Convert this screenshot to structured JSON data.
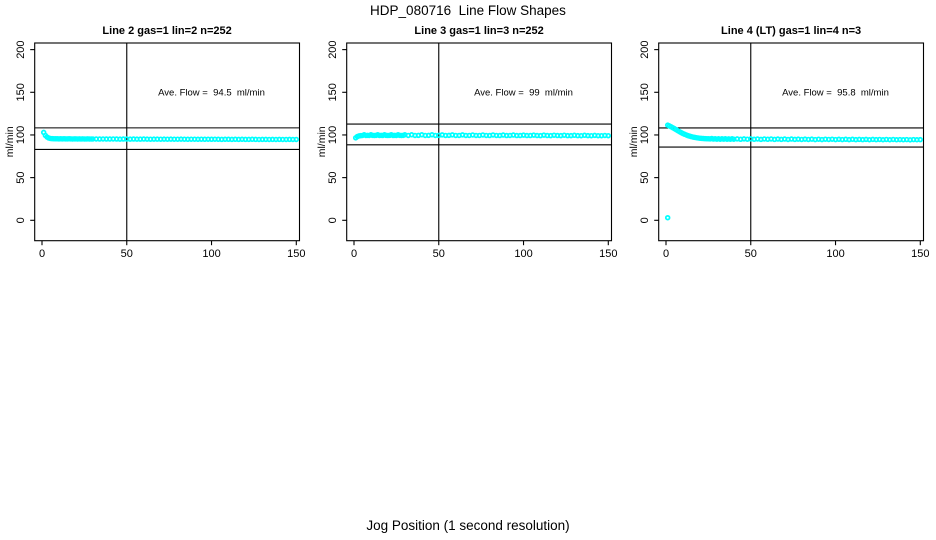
{
  "figure": {
    "background": "#ffffff",
    "accent_color": "#00FFFF"
  },
  "chart_data": {
    "type": "scatter",
    "title": "HDP_080716  Line Flow Shapes",
    "xlabel": "Jog Position (1 second resolution)",
    "ylabel": "ml/min",
    "marker": {
      "shape": "open-circle",
      "color": "#00FFFF"
    },
    "axis": {
      "xticks": [
        0,
        50,
        100,
        150
      ],
      "yticks": [
        0,
        50,
        100,
        150,
        200
      ],
      "xlim": [
        -6,
        156
      ],
      "ylim": [
        -24,
        208
      ],
      "grid": false,
      "legend": "none"
    },
    "panels": [
      {
        "title": "Line 2 gas=1 lin=2 n=252",
        "annotation": "Ave. Flow =  94.5  ml/min",
        "ave_flow_ml_min": 94.5,
        "n": 252,
        "vline": 50,
        "hlines": [
          108.3,
          83.0
        ],
        "points": [
          [
            1,
            103
          ],
          [
            2,
            99.4
          ],
          [
            3,
            97.5
          ],
          [
            4,
            96.4
          ],
          [
            5,
            95.9
          ],
          [
            6,
            95.7
          ],
          [
            7,
            95.6
          ],
          [
            8,
            95.5
          ],
          [
            9,
            95.5
          ],
          [
            10,
            95.4
          ],
          [
            11,
            95.5
          ],
          [
            12,
            95.4
          ],
          [
            13,
            95.5
          ],
          [
            14,
            95.4
          ],
          [
            15,
            95.4
          ],
          [
            16,
            95.5
          ],
          [
            17,
            95.4
          ],
          [
            18,
            95.3
          ],
          [
            19,
            95.4
          ],
          [
            20,
            95.4
          ],
          [
            21,
            95.3
          ],
          [
            22,
            95.4
          ],
          [
            23,
            95.3
          ],
          [
            24,
            95.4
          ],
          [
            25,
            95.3
          ],
          [
            26,
            95.3
          ],
          [
            27,
            95.4
          ],
          [
            28,
            95.3
          ],
          [
            29,
            95.3
          ],
          [
            30,
            95.3
          ],
          [
            32,
            95.3
          ],
          [
            34,
            95.2
          ],
          [
            36,
            95.3
          ],
          [
            38,
            95.2
          ],
          [
            40,
            95.2
          ],
          [
            42,
            95.3
          ],
          [
            44,
            95.2
          ],
          [
            46,
            95.1
          ],
          [
            48,
            95.2
          ],
          [
            50,
            95.2
          ],
          [
            52,
            95.1
          ],
          [
            54,
            95.2
          ],
          [
            56,
            95.1
          ],
          [
            58,
            95.1
          ],
          [
            60,
            95.2
          ],
          [
            62,
            95.1
          ],
          [
            64,
            95
          ],
          [
            66,
            95.1
          ],
          [
            68,
            95.1
          ],
          [
            70,
            95
          ],
          [
            72,
            95.1
          ],
          [
            74,
            95
          ],
          [
            76,
            95.1
          ],
          [
            78,
            95
          ],
          [
            80,
            95
          ],
          [
            82,
            95.1
          ],
          [
            84,
            95
          ],
          [
            86,
            94.9
          ],
          [
            88,
            95
          ],
          [
            90,
            95
          ],
          [
            92,
            94.9
          ],
          [
            94,
            95
          ],
          [
            96,
            94.9
          ],
          [
            98,
            95
          ],
          [
            100,
            94.9
          ],
          [
            102,
            95
          ],
          [
            104,
            94.9
          ],
          [
            106,
            94.8
          ],
          [
            108,
            94.9
          ],
          [
            110,
            94.9
          ],
          [
            112,
            94.8
          ],
          [
            114,
            94.9
          ],
          [
            116,
            94.8
          ],
          [
            118,
            94.9
          ],
          [
            120,
            94.8
          ],
          [
            122,
            94.8
          ],
          [
            124,
            94.9
          ],
          [
            126,
            94.8
          ],
          [
            128,
            94.7
          ],
          [
            130,
            94.8
          ],
          [
            132,
            94.8
          ],
          [
            134,
            94.7
          ],
          [
            136,
            94.8
          ],
          [
            138,
            94.7
          ],
          [
            140,
            94.8
          ],
          [
            142,
            94.7
          ],
          [
            144,
            94.7
          ],
          [
            146,
            94.8
          ],
          [
            148,
            94.7
          ],
          [
            150,
            94.7
          ]
        ]
      },
      {
        "title": "Line 3 gas=1 lin=3 n=252",
        "annotation": "Ave. Flow =  99  ml/min",
        "ave_flow_ml_min": 99,
        "n": 252,
        "vline": 50,
        "hlines": [
          112.8,
          88.5
        ],
        "points": [
          [
            1,
            96.6
          ],
          [
            2,
            98.2
          ],
          [
            3,
            98.9
          ],
          [
            4,
            99.2
          ],
          [
            5,
            99.4
          ],
          [
            6,
            100.2
          ],
          [
            7,
            99.4
          ],
          [
            8,
            99.5
          ],
          [
            9,
            99.4
          ],
          [
            10,
            100.2
          ],
          [
            11,
            99.5
          ],
          [
            12,
            99.4
          ],
          [
            13,
            99.5
          ],
          [
            14,
            100.3
          ],
          [
            15,
            99.4
          ],
          [
            16,
            99.5
          ],
          [
            17,
            99.4
          ],
          [
            18,
            100.2
          ],
          [
            19,
            99.5
          ],
          [
            20,
            99.4
          ],
          [
            21,
            99.5
          ],
          [
            22,
            100.3
          ],
          [
            23,
            99.4
          ],
          [
            24,
            99.5
          ],
          [
            25,
            99.4
          ],
          [
            26,
            100.2
          ],
          [
            27,
            99.5
          ],
          [
            28,
            99.4
          ],
          [
            29,
            99.5
          ],
          [
            30,
            100.2
          ],
          [
            32,
            99.4
          ],
          [
            34,
            100.2
          ],
          [
            36,
            99.4
          ],
          [
            38,
            99.5
          ],
          [
            40,
            100.2
          ],
          [
            42,
            99.4
          ],
          [
            44,
            99.5
          ],
          [
            46,
            100.2
          ],
          [
            48,
            99.4
          ],
          [
            50,
            99.5
          ],
          [
            52,
            100.1
          ],
          [
            54,
            99.4
          ],
          [
            56,
            99.5
          ],
          [
            58,
            100.1
          ],
          [
            60,
            99.4
          ],
          [
            62,
            99.4
          ],
          [
            64,
            100.1
          ],
          [
            66,
            99.4
          ],
          [
            68,
            99.4
          ],
          [
            70,
            100
          ],
          [
            72,
            99.4
          ],
          [
            74,
            99.4
          ],
          [
            76,
            100
          ],
          [
            78,
            99.4
          ],
          [
            80,
            99.3
          ],
          [
            82,
            100
          ],
          [
            84,
            99.4
          ],
          [
            86,
            99.3
          ],
          [
            88,
            99.9
          ],
          [
            90,
            99.3
          ],
          [
            92,
            99.4
          ],
          [
            94,
            99.9
          ],
          [
            96,
            99.3
          ],
          [
            98,
            99.3
          ],
          [
            100,
            99.8
          ],
          [
            102,
            99.3
          ],
          [
            104,
            99.3
          ],
          [
            106,
            99.8
          ],
          [
            108,
            99.3
          ],
          [
            110,
            99.2
          ],
          [
            112,
            99.8
          ],
          [
            114,
            99.3
          ],
          [
            116,
            99.2
          ],
          [
            118,
            99.7
          ],
          [
            120,
            99.3
          ],
          [
            122,
            99.2
          ],
          [
            124,
            99.7
          ],
          [
            126,
            99.2
          ],
          [
            128,
            99.2
          ],
          [
            130,
            99.6
          ],
          [
            132,
            99.2
          ],
          [
            134,
            99.1
          ],
          [
            136,
            99.6
          ],
          [
            138,
            99.2
          ],
          [
            140,
            99.1
          ],
          [
            142,
            99.5
          ],
          [
            144,
            99.1
          ],
          [
            146,
            99.1
          ],
          [
            148,
            99.4
          ],
          [
            150,
            99.1
          ]
        ]
      },
      {
        "title": "Line 4 (LT) gas=1 lin=4 n=3",
        "annotation": "Ave. Flow =  95.8  ml/min",
        "ave_flow_ml_min": 95.8,
        "n": 3,
        "vline": 50,
        "hlines": [
          108.2,
          85.8
        ],
        "outlier_point": [
          1,
          3
        ],
        "points": [
          [
            1,
            3
          ],
          [
            1,
            111.5
          ],
          [
            2,
            110.6
          ],
          [
            3,
            109.6
          ],
          [
            4,
            108.5
          ],
          [
            5,
            107.4
          ],
          [
            6,
            106.2
          ],
          [
            7,
            105
          ],
          [
            8,
            103.8
          ],
          [
            9,
            102.7
          ],
          [
            10,
            101.7
          ],
          [
            11,
            100.8
          ],
          [
            12,
            100
          ],
          [
            13,
            99.2
          ],
          [
            14,
            98.6
          ],
          [
            15,
            98
          ],
          [
            16,
            97.5
          ],
          [
            17,
            97.1
          ],
          [
            18,
            96.8
          ],
          [
            19,
            96.5
          ],
          [
            20,
            96.2
          ],
          [
            21,
            96
          ],
          [
            22,
            95.8
          ],
          [
            23,
            95.7
          ],
          [
            24,
            95.6
          ],
          [
            25,
            95.5
          ],
          [
            26,
            95.4
          ],
          [
            27,
            95.8
          ],
          [
            28,
            95.2
          ],
          [
            29,
            95.6
          ],
          [
            30,
            95.1
          ],
          [
            31,
            95.5
          ],
          [
            32,
            95
          ],
          [
            33,
            95.5
          ],
          [
            34,
            95.1
          ],
          [
            35,
            95.6
          ],
          [
            36,
            95
          ],
          [
            37,
            95.4
          ],
          [
            38,
            95
          ],
          [
            39,
            95.5
          ],
          [
            40,
            95
          ],
          [
            42,
            95.4
          ],
          [
            44,
            94.9
          ],
          [
            46,
            95.4
          ],
          [
            48,
            95
          ],
          [
            50,
            95.4
          ],
          [
            52,
            94.9
          ],
          [
            54,
            95.3
          ],
          [
            56,
            94.8
          ],
          [
            58,
            95.3
          ],
          [
            60,
            94.9
          ],
          [
            62,
            95.3
          ],
          [
            64,
            94.8
          ],
          [
            66,
            95.2
          ],
          [
            68,
            94.8
          ],
          [
            70,
            95.2
          ],
          [
            72,
            94.7
          ],
          [
            74,
            95.2
          ],
          [
            76,
            94.8
          ],
          [
            78,
            95.1
          ],
          [
            80,
            94.7
          ],
          [
            82,
            95.1
          ],
          [
            84,
            94.7
          ],
          [
            86,
            95.1
          ],
          [
            88,
            94.6
          ],
          [
            90,
            95
          ],
          [
            92,
            94.6
          ],
          [
            94,
            95
          ],
          [
            96,
            94.7
          ],
          [
            98,
            95
          ],
          [
            100,
            94.6
          ],
          [
            102,
            94.9
          ],
          [
            104,
            94.6
          ],
          [
            106,
            94.9
          ],
          [
            108,
            94.5
          ],
          [
            110,
            94.9
          ],
          [
            112,
            94.5
          ],
          [
            114,
            94.8
          ],
          [
            116,
            94.5
          ],
          [
            118,
            94.8
          ],
          [
            120,
            94.4
          ],
          [
            122,
            94.8
          ],
          [
            124,
            94.5
          ],
          [
            126,
            94.7
          ],
          [
            128,
            94.4
          ],
          [
            130,
            94.7
          ],
          [
            132,
            94.4
          ],
          [
            134,
            94.7
          ],
          [
            136,
            94.4
          ],
          [
            138,
            94.6
          ],
          [
            140,
            94.4
          ],
          [
            142,
            94.6
          ],
          [
            144,
            94.3
          ],
          [
            146,
            94.6
          ],
          [
            148,
            94.4
          ],
          [
            150,
            94.5
          ]
        ]
      }
    ]
  }
}
